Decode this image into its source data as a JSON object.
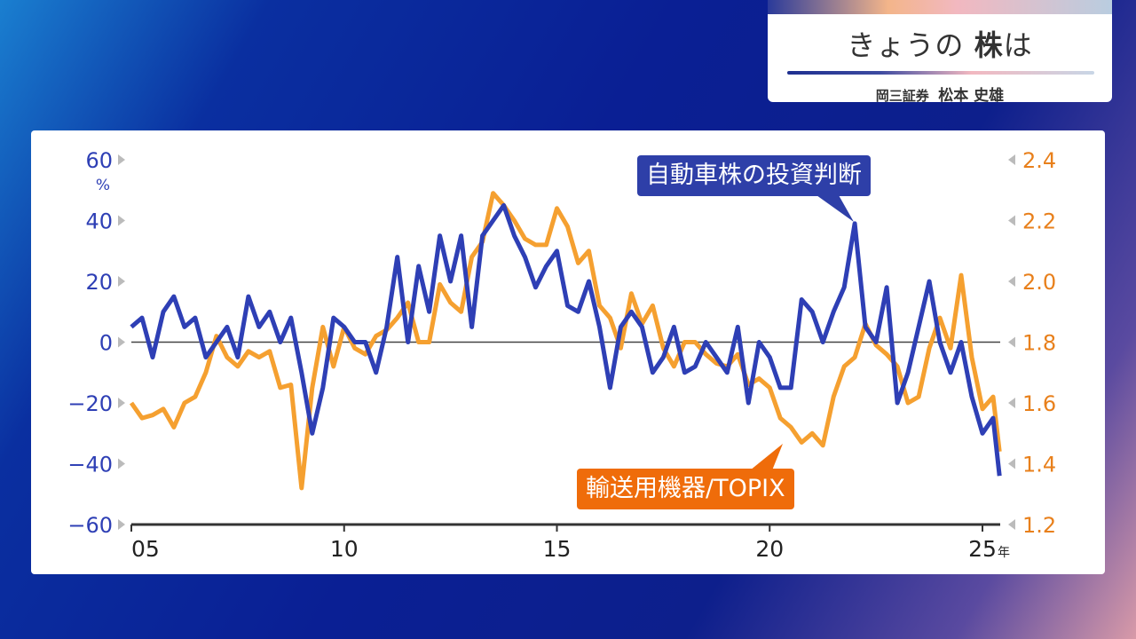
{
  "header": {
    "title_kana": "きょうの",
    "title_bold": "株",
    "title_end": "は",
    "company": "岡三証券",
    "person": "松本 史雄"
  },
  "colors": {
    "blue": "#2e3fb5",
    "orange": "#f5a030",
    "orange_label": "#ef6c0a",
    "blue_label": "#2e3fa8"
  },
  "chart_data": {
    "type": "line",
    "x_ticks": [
      "05",
      "10",
      "15",
      "20",
      "25"
    ],
    "x_tick_values": [
      2005,
      2010,
      2015,
      2020,
      2025
    ],
    "x_unit": "年",
    "xlim": [
      2005,
      2025.5
    ],
    "left_axis": {
      "unit": "%",
      "ticks": [
        "60",
        "40",
        "20",
        "0",
        "−20",
        "−40",
        "−60"
      ],
      "ylim": [
        -60,
        60
      ]
    },
    "right_axis": {
      "ticks": [
        "2.4",
        "2.2",
        "2.0",
        "1.8",
        "1.6",
        "1.4",
        "1.2"
      ],
      "ylim": [
        1.2,
        2.4
      ]
    },
    "series": [
      {
        "name": "自動車株の投資判断",
        "axis": "left",
        "x": [
          2005,
          2005.25,
          2005.5,
          2005.75,
          2006,
          2006.25,
          2006.5,
          2006.75,
          2007,
          2007.25,
          2007.5,
          2007.75,
          2008,
          2008.25,
          2008.5,
          2008.75,
          2009,
          2009.25,
          2009.5,
          2009.75,
          2010,
          2010.25,
          2010.5,
          2010.75,
          2011,
          2011.25,
          2011.5,
          2011.75,
          2012,
          2012.25,
          2012.5,
          2012.75,
          2013,
          2013.25,
          2013.5,
          2013.75,
          2014,
          2014.25,
          2014.5,
          2014.75,
          2015,
          2015.25,
          2015.5,
          2015.75,
          2016,
          2016.25,
          2016.5,
          2016.75,
          2017,
          2017.25,
          2017.5,
          2017.75,
          2018,
          2018.25,
          2018.5,
          2018.75,
          2019,
          2019.25,
          2019.5,
          2019.75,
          2020,
          2020.25,
          2020.5,
          2020.75,
          2021,
          2021.25,
          2021.5,
          2021.75,
          2022,
          2022.25,
          2022.5,
          2022.75,
          2023,
          2023.25,
          2023.5,
          2023.75,
          2024,
          2024.25,
          2024.5,
          2024.75,
          2025,
          2025.25,
          2025.4
        ],
        "values": [
          5,
          8,
          -5,
          10,
          15,
          5,
          8,
          -5,
          0,
          5,
          -5,
          15,
          5,
          10,
          0,
          8,
          -10,
          -30,
          -15,
          8,
          5,
          0,
          0,
          -10,
          5,
          28,
          0,
          25,
          10,
          35,
          20,
          35,
          5,
          35,
          40,
          45,
          35,
          28,
          18,
          25,
          30,
          12,
          10,
          20,
          5,
          -15,
          5,
          10,
          5,
          -10,
          -5,
          5,
          -10,
          -8,
          0,
          -5,
          -10,
          5,
          -20,
          0,
          -5,
          -15,
          -15,
          14,
          10,
          0,
          10,
          18,
          39,
          5,
          0,
          18,
          -20,
          -10,
          5,
          20,
          0,
          -10,
          0,
          -18,
          -30,
          -25,
          -44
        ]
      },
      {
        "name": "輸送用機器/TOPIX",
        "axis": "right",
        "x": [
          2005,
          2005.25,
          2005.5,
          2005.75,
          2006,
          2006.25,
          2006.5,
          2006.75,
          2007,
          2007.25,
          2007.5,
          2007.75,
          2008,
          2008.25,
          2008.5,
          2008.75,
          2009,
          2009.25,
          2009.5,
          2009.75,
          2010,
          2010.25,
          2010.5,
          2010.75,
          2011,
          2011.25,
          2011.5,
          2011.75,
          2012,
          2012.25,
          2012.5,
          2012.75,
          2013,
          2013.25,
          2013.5,
          2013.75,
          2014,
          2014.25,
          2014.5,
          2014.75,
          2015,
          2015.25,
          2015.5,
          2015.75,
          2016,
          2016.25,
          2016.5,
          2016.75,
          2017,
          2017.25,
          2017.5,
          2017.75,
          2018,
          2018.25,
          2018.5,
          2018.75,
          2019,
          2019.25,
          2019.5,
          2019.75,
          2020,
          2020.25,
          2020.5,
          2020.75,
          2021,
          2021.25,
          2021.5,
          2021.75,
          2022,
          2022.25,
          2022.5,
          2022.75,
          2023,
          2023.25,
          2023.5,
          2023.75,
          2024,
          2024.25,
          2024.5,
          2024.75,
          2025,
          2025.25,
          2025.4
        ],
        "values": [
          1.6,
          1.55,
          1.56,
          1.58,
          1.52,
          1.6,
          1.62,
          1.7,
          1.82,
          1.75,
          1.72,
          1.77,
          1.75,
          1.77,
          1.65,
          1.66,
          1.32,
          1.65,
          1.85,
          1.72,
          1.85,
          1.78,
          1.76,
          1.82,
          1.84,
          1.88,
          1.93,
          1.8,
          1.8,
          1.99,
          1.93,
          1.9,
          2.08,
          2.13,
          2.29,
          2.25,
          2.2,
          2.14,
          2.12,
          2.12,
          2.24,
          2.18,
          2.06,
          2.1,
          1.92,
          1.88,
          1.78,
          1.96,
          1.86,
          1.92,
          1.78,
          1.72,
          1.8,
          1.8,
          1.76,
          1.73,
          1.72,
          1.76,
          1.66,
          1.68,
          1.65,
          1.55,
          1.52,
          1.47,
          1.5,
          1.46,
          1.62,
          1.72,
          1.75,
          1.86,
          1.79,
          1.76,
          1.72,
          1.6,
          1.62,
          1.78,
          1.88,
          1.78,
          2.02,
          1.75,
          1.58,
          1.62,
          1.44
        ]
      }
    ],
    "annotations": [
      "自動車株の投資判断",
      "輸送用機器/TOPIX"
    ],
    "reference_line": 0
  }
}
